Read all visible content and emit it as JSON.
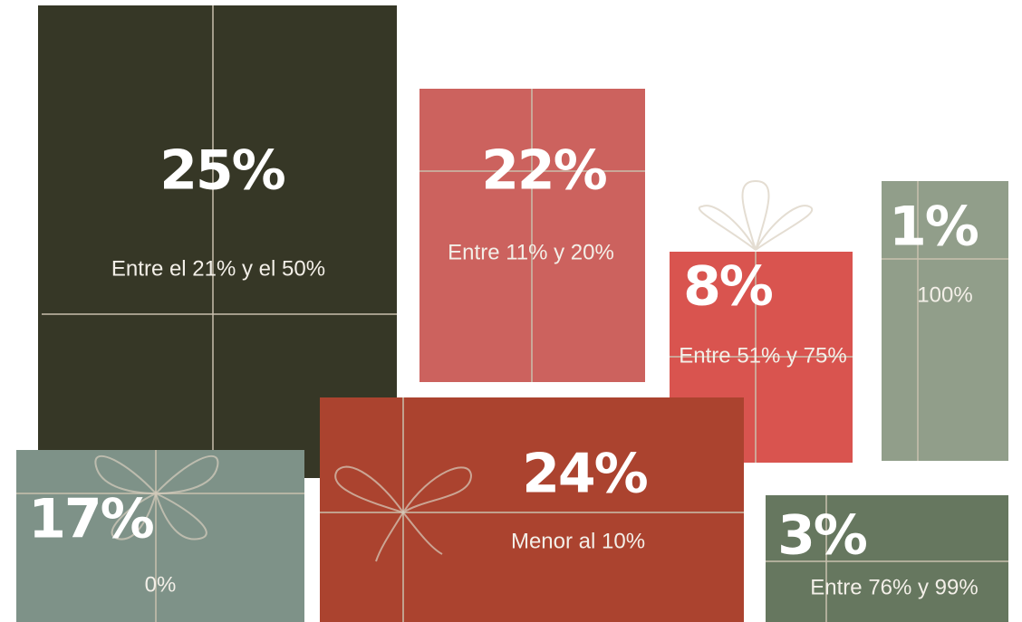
{
  "boxes": [
    {
      "value": "25%",
      "label": "Entre el 21% y el 50%"
    },
    {
      "value": "22%",
      "label": "Entre 11% y 20%"
    },
    {
      "value": "8%",
      "label": "Entre 51% y 75%"
    },
    {
      "value": "1%",
      "label": "100%"
    },
    {
      "value": "17%",
      "label": "0%"
    },
    {
      "value": "24%",
      "label": "Menor al 10%"
    },
    {
      "value": "3%",
      "label": "Entre 76% y 99%"
    }
  ]
}
